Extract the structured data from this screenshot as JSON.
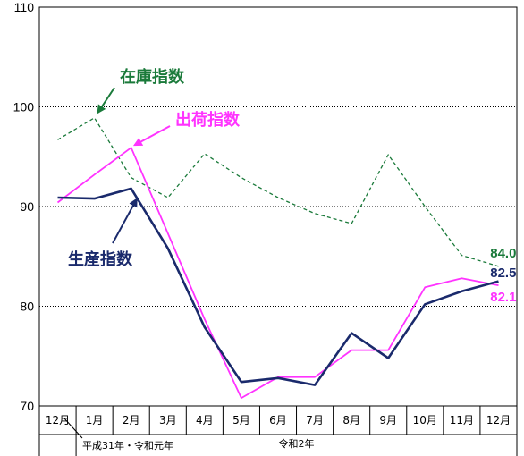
{
  "chart_data": {
    "type": "line",
    "categories": [
      "12月",
      "1月",
      "2月",
      "3月",
      "4月",
      "5月",
      "6月",
      "7月",
      "8月",
      "9月",
      "10月",
      "11月",
      "12月"
    ],
    "era_labels": [
      "平成31年・令和元年",
      "令和2年"
    ],
    "ylim": [
      70,
      110
    ],
    "yticks": [
      70,
      80,
      90,
      100,
      110
    ],
    "grid": true,
    "series": [
      {
        "name": "生産指数",
        "color": "#1a2a6c",
        "style": "solid",
        "values": [
          90.9,
          90.8,
          91.8,
          85.8,
          77.9,
          72.4,
          72.8,
          72.1,
          77.3,
          74.8,
          80.2,
          81.5,
          82.5
        ],
        "end_label": "82.5"
      },
      {
        "name": "出荷指数",
        "color": "#ff33ff",
        "style": "solid",
        "values": [
          90.4,
          93.2,
          95.9,
          87.3,
          78.7,
          70.8,
          72.9,
          72.9,
          75.6,
          75.6,
          81.9,
          82.8,
          82.1
        ],
        "end_label": "82.1"
      },
      {
        "name": "在庫指数",
        "color": "#1a7a3a",
        "style": "dashed",
        "values": [
          96.7,
          98.9,
          92.9,
          90.9,
          95.3,
          92.9,
          90.9,
          89.3,
          88.3,
          95.2,
          90.0,
          85.1,
          84.0
        ],
        "end_label": "84.0"
      }
    ]
  }
}
